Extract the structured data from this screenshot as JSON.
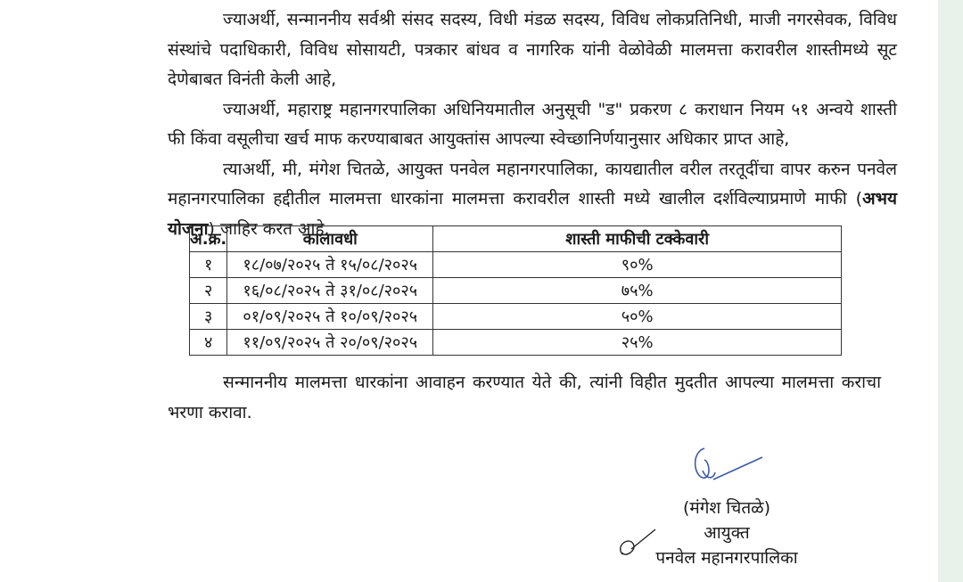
{
  "paragraphs": [
    "ज्याअर्थी, सन्माननीय सर्वश्री संसद सदस्य, विधी मंडळ सदस्य, विविध लोकप्रतिनिधी, माजी नगरसेवक, विविध संस्थांचे पदाधिकारी, विविध सोसायटी, पत्रकार बांधव व नागरिक यांनी वेळोवेळी मालमत्ता करावरील शास्तीमध्ये सूट देणेबाबत विनंती केली आहे,",
    "ज्याअर्थी, महाराष्ट्र महानगरपालिका अधिनियमातील अनुसूची \"ड\" प्रकरण ८ कराधान नियम ५१ अन्वये शास्ती फी किंवा वसूलीचा खर्च माफ करण्याबाबत आयुक्तांस आपल्या स्वेच्छानिर्णयानुसार अधिकार प्राप्त आहे,",
    "त्याअर्थी, मी, मंगेश चितळे, आयुक्त पनवेल महानगरपालिका, कायद्यातील वरील तरतूदींचा वापर करुन पनवेल महानगरपालिका हद्दीतील मालमत्ता धारकांना मालमत्ता करावरील शास्ती मध्ये खालील दर्शविल्याप्रमाणे माफी ("
  ],
  "bold_phrase": "अभय योजना",
  "paragraph_end": ") जाहिर करत आहे.",
  "table": {
    "headers": [
      "अ.क्र.",
      "कालावधी",
      "शास्ती माफीची टक्केवारी"
    ],
    "rows": [
      [
        "१",
        "१८/०७/२०२५ ते १५/०८/२०२५",
        "९०%"
      ],
      [
        "२",
        "१६/०८/२०२५ ते ३१/०८/२०२५",
        "७५%"
      ],
      [
        "३",
        "०१/०९/२०२५ ते १०/०९/२०२५",
        "५०%"
      ],
      [
        "४",
        "११/०९/२०२५ ते २०/०९/२०२५",
        "२५%"
      ]
    ]
  },
  "closing": "सन्माननीय मालमत्ता धारकांना आवाहन करण्यात येते की, त्यांनी विहीत मुदतीत आपल्या मालमत्ता कराचा भरणा करावा.",
  "signature": {
    "name": "(मंगेश चितळे)",
    "designation": "आयुक्त",
    "organization": "पनवेल महानगरपालिका"
  }
}
